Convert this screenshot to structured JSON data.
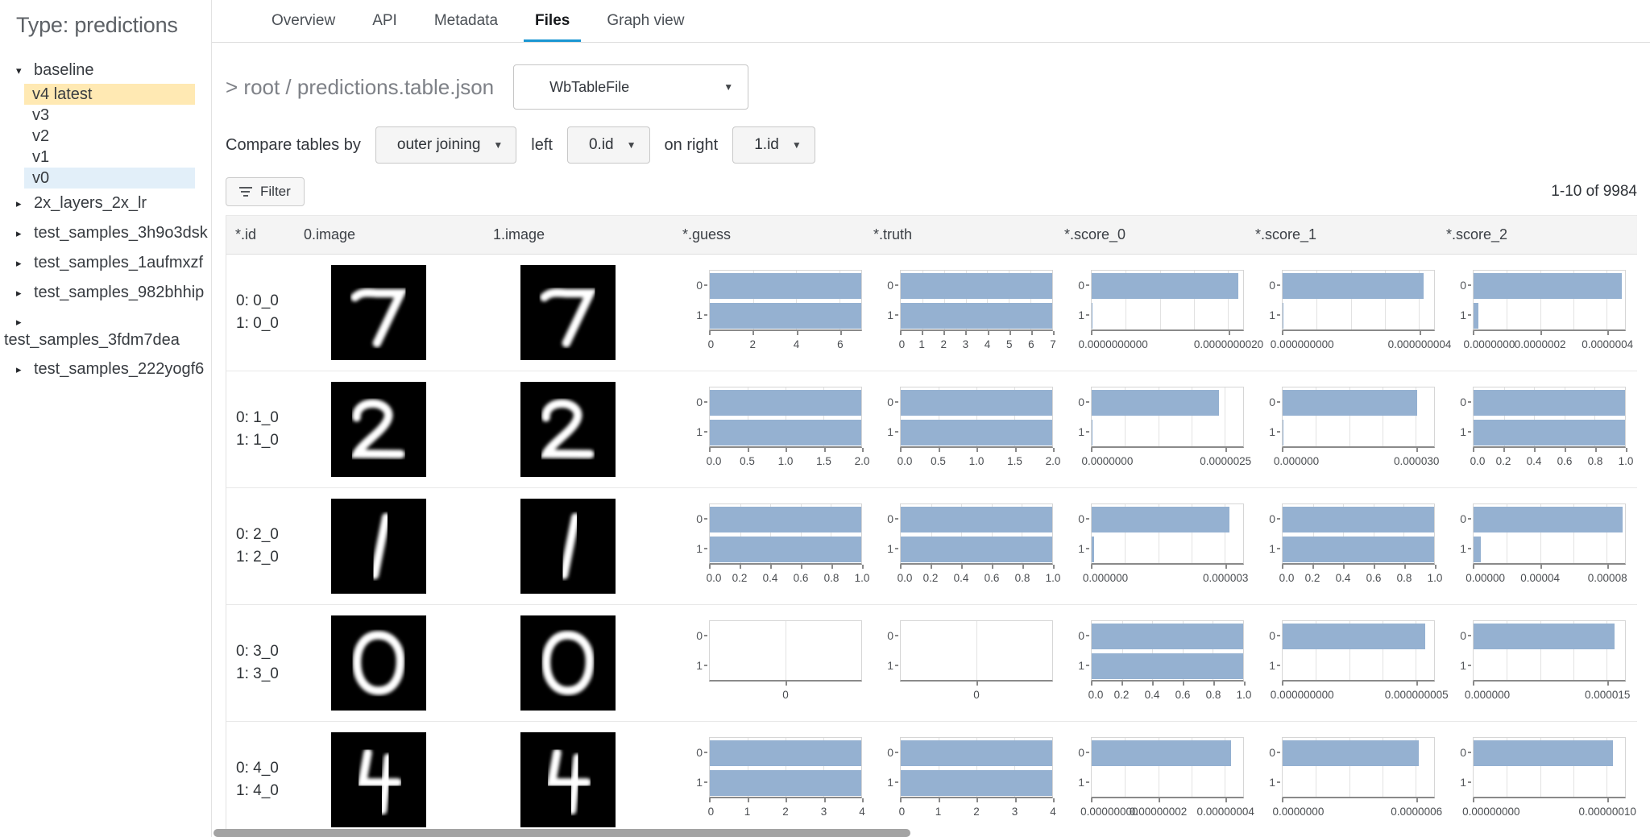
{
  "colors": {
    "accent": "#1a96d2",
    "bar_fill": "#95b1d1",
    "highlight_gold": "#ffe9b3",
    "highlight_blue": "#e2eff9"
  },
  "sidebar": {
    "title": "Type: predictions",
    "tree": [
      {
        "label": "baseline",
        "expanded": true,
        "children": [
          {
            "label": "v4 latest",
            "highlight": "gold"
          },
          {
            "label": "v3"
          },
          {
            "label": "v2"
          },
          {
            "label": "v1"
          },
          {
            "label": "v0",
            "highlight": "blue"
          }
        ]
      },
      {
        "label": "2x_layers_2x_lr"
      },
      {
        "label": "test_samples_3h9o3dsk"
      },
      {
        "label": "test_samples_1aufmxzf"
      },
      {
        "label": "test_samples_982bhhip"
      },
      {
        "label": "test_samples_3fdm7dea",
        "wrapped": true
      },
      {
        "label": "test_samples_222yogf6"
      }
    ]
  },
  "tabs": {
    "items": [
      "Overview",
      "API",
      "Metadata",
      "Files",
      "Graph view"
    ],
    "active": "Files"
  },
  "file_header": {
    "breadcrumb": "> root / predictions.table.json",
    "type_selector": "WbTableFile"
  },
  "compare_bar": {
    "prefix": "Compare tables by",
    "join_select": "outer joining",
    "left_label": "left",
    "left_select": "0.id",
    "right_label": "on right",
    "right_select": "1.id",
    "filter_label": "Filter"
  },
  "pagination": "1-10 of 9984",
  "table": {
    "columns": [
      "*.id",
      "0.image",
      "1.image",
      "*.guess",
      "*.truth",
      "*.score_0",
      "*.score_1",
      "*.score_2"
    ],
    "chart_categories": [
      "0",
      "1"
    ],
    "rows": [
      {
        "id_lines": [
          "0: 0_0",
          "1: 0_0"
        ],
        "digit": "7",
        "charts": {
          "guess": {
            "t": [
              [
                "0",
                0
              ],
              [
                "2",
                0.2857
              ],
              [
                "4",
                0.5714
              ],
              [
                "6",
                0.8571
              ]
            ],
            "b": [
              1,
              1
            ]
          },
          "truth": {
            "t": [
              [
                "0",
                0
              ],
              [
                "1",
                0.1429
              ],
              [
                "2",
                0.2857
              ],
              [
                "3",
                0.4286
              ],
              [
                "4",
                0.5714
              ],
              [
                "5",
                0.7143
              ],
              [
                "6",
                0.8571
              ],
              [
                "7",
                1
              ]
            ],
            "b": [
              1,
              1
            ]
          },
          "score_0": {
            "t": [
              [
                "0.0000000000",
                0
              ],
              [
                "0.0000000020",
                0.9
              ]
            ],
            "g": [
              0.225,
              0.45,
              0.675
            ],
            "b": [
              0.97,
              0.005
            ]
          },
          "score_1": {
            "t": [
              [
                "0.000000000",
                0
              ],
              [
                "0.000000004",
                0.9
              ]
            ],
            "g": [
              0.225,
              0.45,
              0.675
            ],
            "b": [
              0.93,
              0.005
            ]
          },
          "score_2": {
            "t": [
              [
                "0.0000000",
                0
              ],
              [
                "0.0000002",
                0.44
              ],
              [
                "0.0000004",
                0.88
              ]
            ],
            "g": [
              0.22,
              0.66
            ],
            "b": [
              0.98,
              0.03
            ]
          }
        }
      },
      {
        "id_lines": [
          "0: 1_0",
          "1: 1_0"
        ],
        "digit": "2",
        "charts": {
          "guess": {
            "t": [
              [
                "0.0",
                0
              ],
              [
                "0.5",
                0.25
              ],
              [
                "1.0",
                0.5
              ],
              [
                "1.5",
                0.75
              ],
              [
                "2.0",
                1
              ]
            ],
            "b": [
              1,
              1
            ]
          },
          "truth": {
            "t": [
              [
                "0.0",
                0
              ],
              [
                "0.5",
                0.25
              ],
              [
                "1.0",
                0.5
              ],
              [
                "1.5",
                0.75
              ],
              [
                "2.0",
                1
              ]
            ],
            "b": [
              1,
              1
            ]
          },
          "score_0": {
            "t": [
              [
                "0.0000000",
                0
              ],
              [
                "0.0000025",
                0.88
              ]
            ],
            "g": [
              0.22,
              0.44,
              0.66
            ],
            "b": [
              0.84,
              0.005
            ]
          },
          "score_1": {
            "t": [
              [
                "0.000000",
                0
              ],
              [
                "0.000030",
                0.88
              ]
            ],
            "g": [
              0.22,
              0.44,
              0.66
            ],
            "b": [
              0.89,
              0.005
            ]
          },
          "score_2": {
            "t": [
              [
                "0.0",
                0
              ],
              [
                "0.2",
                0.2
              ],
              [
                "0.4",
                0.4
              ],
              [
                "0.6",
                0.6
              ],
              [
                "0.8",
                0.8
              ],
              [
                "1.0",
                1
              ]
            ],
            "b": [
              1,
              1
            ]
          }
        }
      },
      {
        "id_lines": [
          "0: 2_0",
          "1: 2_0"
        ],
        "digit": "1",
        "charts": {
          "guess": {
            "t": [
              [
                "0.0",
                0
              ],
              [
                "0.2",
                0.2
              ],
              [
                "0.4",
                0.4
              ],
              [
                "0.6",
                0.6
              ],
              [
                "0.8",
                0.8
              ],
              [
                "1.0",
                1
              ]
            ],
            "b": [
              1,
              1
            ]
          },
          "truth": {
            "t": [
              [
                "0.0",
                0
              ],
              [
                "0.2",
                0.2
              ],
              [
                "0.4",
                0.4
              ],
              [
                "0.6",
                0.6
              ],
              [
                "0.8",
                0.8
              ],
              [
                "1.0",
                1
              ]
            ],
            "b": [
              1,
              1
            ]
          },
          "score_0": {
            "t": [
              [
                "0.000000",
                0
              ],
              [
                "0.000003",
                0.88
              ]
            ],
            "g": [
              0.22,
              0.44,
              0.66
            ],
            "b": [
              0.91,
              0.015
            ]
          },
          "score_1": {
            "t": [
              [
                "0.0",
                0
              ],
              [
                "0.2",
                0.2
              ],
              [
                "0.4",
                0.4
              ],
              [
                "0.6",
                0.6
              ],
              [
                "0.8",
                0.8
              ],
              [
                "1.0",
                1
              ]
            ],
            "b": [
              1,
              1
            ]
          },
          "score_2": {
            "t": [
              [
                "0.00000",
                0
              ],
              [
                "0.00004",
                0.44
              ],
              [
                "0.00008",
                0.88
              ]
            ],
            "g": [
              0.22,
              0.66
            ],
            "b": [
              0.985,
              0.05
            ]
          }
        }
      },
      {
        "id_lines": [
          "0: 3_0",
          "1: 3_0"
        ],
        "digit": "0",
        "charts": {
          "guess": {
            "t": [
              [
                "0",
                0.5
              ]
            ],
            "b": [
              0,
              0
            ]
          },
          "truth": {
            "t": [
              [
                "0",
                0.5
              ]
            ],
            "b": [
              0,
              0
            ]
          },
          "score_0": {
            "t": [
              [
                "0.0",
                0
              ],
              [
                "0.2",
                0.2
              ],
              [
                "0.4",
                0.4
              ],
              [
                "0.6",
                0.6
              ],
              [
                "0.8",
                0.8
              ],
              [
                "1.0",
                1
              ]
            ],
            "b": [
              1,
              1
            ]
          },
          "score_1": {
            "t": [
              [
                "0.000000000",
                0
              ],
              [
                "0.000000005",
                0.88
              ]
            ],
            "g": [
              0.22,
              0.44,
              0.66
            ],
            "b": [
              0.94,
              0
            ]
          },
          "score_2": {
            "t": [
              [
                "0.000000",
                0
              ],
              [
                "0.000015",
                0.88
              ]
            ],
            "g": [
              0.22,
              0.44,
              0.66
            ],
            "b": [
              0.93,
              0
            ]
          }
        }
      },
      {
        "id_lines": [
          "0: 4_0",
          "1: 4_0"
        ],
        "digit": "4",
        "charts": {
          "guess": {
            "t": [
              [
                "0",
                0
              ],
              [
                "1",
                0.25
              ],
              [
                "2",
                0.5
              ],
              [
                "3",
                0.75
              ],
              [
                "4",
                1
              ]
            ],
            "b": [
              1,
              1
            ]
          },
          "truth": {
            "t": [
              [
                "0",
                0
              ],
              [
                "1",
                0.25
              ],
              [
                "2",
                0.5
              ],
              [
                "3",
                0.75
              ],
              [
                "4",
                1
              ]
            ],
            "b": [
              1,
              1
            ]
          },
          "score_0": {
            "t": [
              [
                "0.00000000",
                0
              ],
              [
                "0.00000002",
                0.44
              ],
              [
                "0.00000004",
                0.88
              ]
            ],
            "g": [
              0.22,
              0.66
            ],
            "b": [
              0.92,
              0
            ]
          },
          "score_1": {
            "t": [
              [
                "0.0000000",
                0
              ],
              [
                "0.0000006",
                0.88
              ]
            ],
            "g": [
              0.22,
              0.44,
              0.66
            ],
            "b": [
              0.9,
              0
            ]
          },
          "score_2": {
            "t": [
              [
                "0.00000000",
                0
              ],
              [
                "0.00000010",
                0.88
              ]
            ],
            "g": [
              0.22,
              0.44,
              0.66
            ],
            "b": [
              0.92,
              0
            ]
          }
        }
      }
    ]
  }
}
